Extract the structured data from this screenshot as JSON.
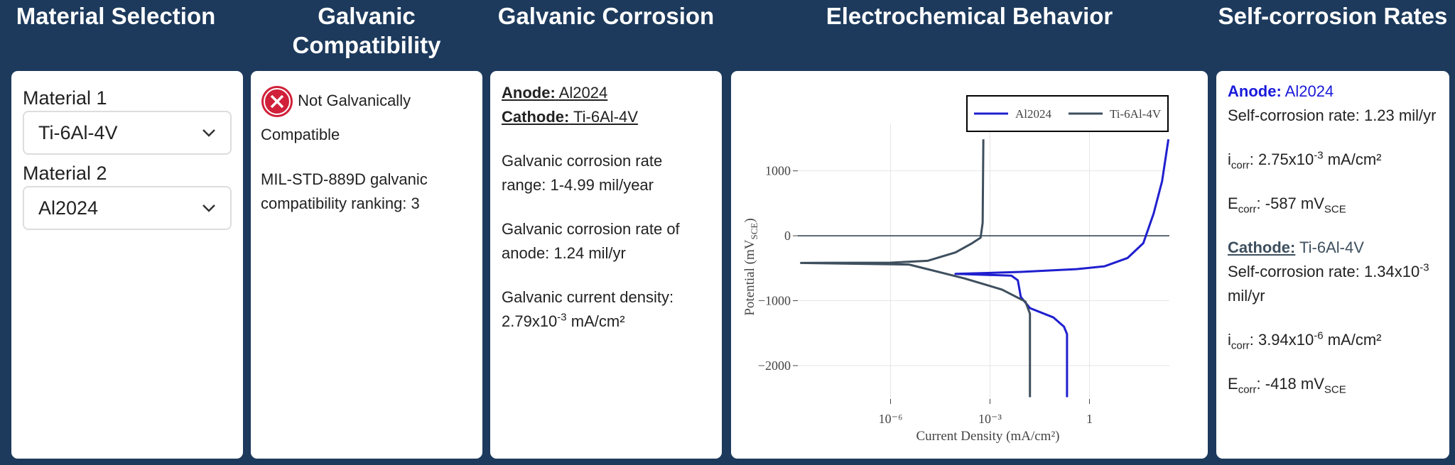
{
  "header": {
    "columns": [
      "Material Selection",
      "Galvanic Compatibility",
      "Galvanic Corrosion",
      "Electrochemical Behavior",
      "Self-corrosion Rates"
    ]
  },
  "material_selection": {
    "material_1": {
      "label": "Material 1",
      "value": "Ti-6Al-4V"
    },
    "material_2": {
      "label": "Material 2",
      "value": "Al2024"
    }
  },
  "compatibility": {
    "status": "Not Galvanically Compatible",
    "ranking": "MIL-STD-889D galvanic compatibility ranking: 3"
  },
  "galvanic_corrosion": {
    "anode_label": "Anode:",
    "anode": "Al2024",
    "cathode_label": "Cathode:",
    "cathode": "Ti-6Al-4V",
    "rate_range": "Galvanic corrosion rate range: 1-4.99 mil/year",
    "anode_rate": "Galvanic corrosion rate of anode: 1.24 mil/yr",
    "current_density": [
      "Galvanic current density: 2.79x10",
      "-3",
      " mA/cm²"
    ]
  },
  "chart_data": {
    "type": "line",
    "title": "Electrochemical Behavior",
    "x_label": "Current Density (mA/cm²)",
    "y_label": [
      "Potential (mV",
      "SCE",
      ")"
    ],
    "xscale": "log",
    "grid": true,
    "legend": "top-right",
    "xlim": [
      1.6e-09,
      257
    ],
    "ylim": [
      -2514,
      1729
    ],
    "xticks": [
      {
        "value": 1e-06,
        "label": "10⁻⁶"
      },
      {
        "value": 0.001,
        "label": "10⁻³"
      },
      1
    ],
    "yticks": [
      {
        "value": -2000,
        "label": "−2000"
      },
      {
        "value": -1000,
        "label": "−1000"
      },
      0,
      1000
    ],
    "series": [
      {
        "name": "Al2024",
        "color": "#1f1fcf",
        "x": [
          0.21,
          0.21,
          0.17,
          0.081,
          0.016,
          0.0085,
          0.0069,
          0.0044,
          9.1e-05,
          0.0085,
          0.4,
          2.8,
          14,
          42,
          86,
          155,
          240
        ],
        "values": [
          -2486,
          -1514,
          -1400,
          -1257,
          -1114,
          -943,
          -686,
          -614,
          -587,
          -557,
          -514,
          -471,
          -343,
          -114,
          343,
          843,
          1486
        ]
      },
      {
        "name": "Ti-6Al-4V",
        "color": "#3e4f5e",
        "x": [
          0.016,
          0.016,
          0.0117,
          0.0023,
          0.00017,
          1.3e-05,
          3.6e-06,
          2e-09,
          1e-06,
          1.3e-05,
          9.1e-05,
          0.00029,
          0.00052,
          0.0006,
          0.00063
        ],
        "values": [
          -2486,
          -1200,
          -1014,
          -829,
          -657,
          -514,
          -443,
          -418,
          -414,
          -386,
          -257,
          -114,
          -29,
          200,
          1486
        ]
      }
    ]
  },
  "self_corrosion": {
    "anode": {
      "label": "Anode:",
      "name": "Al2024",
      "rate": "Self-corrosion rate: 1.23 mil/yr",
      "icorr": [
        "i",
        "corr",
        ": 2.75x10",
        "-3",
        " mA/cm²"
      ],
      "ecorr": [
        "E",
        "corr",
        ": -587 mV",
        "SCE"
      ]
    },
    "cathode": {
      "label": "Cathode:",
      "name": "Ti-6Al-4V",
      "rate": [
        "Self-corrosion rate: 1.34x10",
        "-3",
        " mil/yr"
      ],
      "icorr": [
        "i",
        "corr",
        ": 3.94x10",
        "-6",
        " mA/cm²"
      ],
      "ecorr": [
        "E",
        "corr",
        ": -418 mV",
        "SCE"
      ]
    }
  }
}
